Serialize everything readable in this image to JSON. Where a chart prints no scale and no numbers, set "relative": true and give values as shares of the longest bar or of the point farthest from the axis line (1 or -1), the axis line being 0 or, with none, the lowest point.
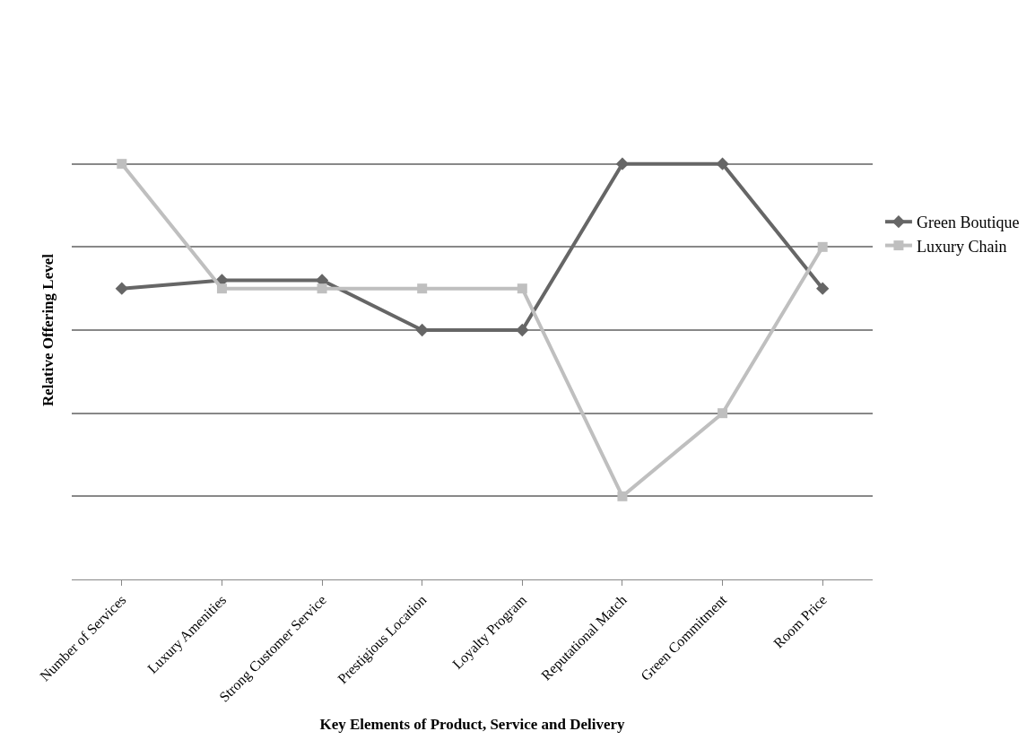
{
  "chart_data": {
    "type": "line",
    "xlabel": "Key Elements of Product, Service and Delivery",
    "ylabel": "Relative Offering Level",
    "categories": [
      "Number of Services",
      "Luxury Amenities",
      "Strong Customer Service",
      "Prestigious Location",
      "Loyalty Program",
      "Reputational Match",
      "Green Commitment",
      "Room Price"
    ],
    "relative": true,
    "grid": "y",
    "legend": "right",
    "series": [
      {
        "name": "Green Boutique",
        "color": "#666666",
        "marker": "diamond",
        "values": [
          0.7,
          0.72,
          0.72,
          0.6,
          0.6,
          1,
          1,
          0.7
        ]
      },
      {
        "name": "Luxury Chain",
        "color": "#bfbfbf",
        "marker": "square",
        "values": [
          1,
          0.7,
          0.7,
          0.7,
          0.7,
          0.2,
          0.4,
          0.8
        ]
      }
    ]
  }
}
